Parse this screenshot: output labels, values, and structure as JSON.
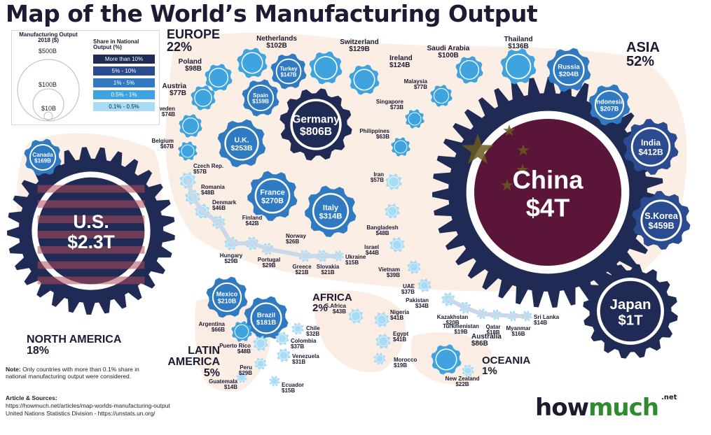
{
  "title": "Map of the World’s Manufacturing Output",
  "legend": {
    "size_title": "Manufacturing Output 2018 ($)",
    "scale": [
      "$500B",
      "$100B",
      "$10B"
    ],
    "share_title": "Share in National Output (%)",
    "categories": [
      "More than 10%",
      "5% - 10%",
      "1% - 5%",
      "0.5% - 1%",
      "0.1% - 0.5%"
    ]
  },
  "colors": {
    "navy": "#1f2a55",
    "dark_blue": "#2a4b8f",
    "blue": "#2f7ac0",
    "light_blue": "#3ea3df",
    "pale_blue": "#a8dcf5",
    "china": "#5a1538",
    "brand_green": "#2e8b2e"
  },
  "regions": [
    {
      "name": "EUROPE",
      "pct": "22%"
    },
    {
      "name": "ASIA",
      "pct": "52%"
    },
    {
      "name": "NORTH AMERICA",
      "pct": "18%"
    },
    {
      "name": "LATIN AMERICA",
      "pct": "5%"
    },
    {
      "name": "AFRICA",
      "pct": "2%"
    },
    {
      "name": "OCEANIA",
      "pct": "1%"
    }
  ],
  "countries": [
    {
      "name": "China",
      "value": "$4T",
      "category": "More than 10%"
    },
    {
      "name": "U.S.",
      "value": "$2.3T",
      "category": "More than 10%"
    },
    {
      "name": "Japan",
      "value": "$1T",
      "category": "More than 10%"
    },
    {
      "name": "Germany",
      "value": "$806B",
      "category": "More than 10%"
    },
    {
      "name": "S.Korea",
      "value": "$459B",
      "category": "5% - 10%"
    },
    {
      "name": "India",
      "value": "$412B",
      "category": "5% - 10%"
    },
    {
      "name": "Italy",
      "value": "$314B",
      "category": "1% - 5%"
    },
    {
      "name": "France",
      "value": "$270B",
      "category": "1% - 5%"
    },
    {
      "name": "U.K.",
      "value": "$253B",
      "category": "1% - 5%"
    },
    {
      "name": "Brazil",
      "value": "$181B",
      "category": "1% - 5%"
    },
    {
      "name": "Mexico",
      "value": "$210B",
      "category": "1% - 5%"
    },
    {
      "name": "Indonesia",
      "value": "$207B",
      "category": "1% - 5%"
    },
    {
      "name": "Russia",
      "value": "$204B",
      "category": "1% - 5%"
    },
    {
      "name": "Canada",
      "value": "$169B",
      "category": "1% - 5%"
    },
    {
      "name": "Spain",
      "value": "$159B",
      "category": "1% - 5%"
    },
    {
      "name": "Turkey",
      "value": "$147B",
      "category": "1% - 5%"
    },
    {
      "name": "Thailand",
      "value": "$136B",
      "category": "0.5% - 1%"
    },
    {
      "name": "Switzerland",
      "value": "$129B",
      "category": "0.5% - 1%"
    },
    {
      "name": "Ireland",
      "value": "$124B",
      "category": "0.5% - 1%"
    },
    {
      "name": "Netherlands",
      "value": "$102B",
      "category": "0.5% - 1%"
    },
    {
      "name": "Saudi Arabia",
      "value": "$100B",
      "category": "0.5% - 1%"
    },
    {
      "name": "Poland",
      "value": "$98B",
      "category": "0.5% - 1%"
    },
    {
      "name": "Australia",
      "value": "$86B",
      "category": "0.5% - 1%"
    },
    {
      "name": "Austria",
      "value": "$77B",
      "category": "0.5% - 1%"
    },
    {
      "name": "Malaysia",
      "value": "$77B",
      "category": "0.5% - 1%"
    },
    {
      "name": "Sweden",
      "value": "$74B",
      "category": "0.5% - 1%"
    },
    {
      "name": "Singapore",
      "value": "$73B",
      "category": "0.5% - 1%"
    },
    {
      "name": "Belgium",
      "value": "$67B",
      "category": "0.5% - 1%"
    },
    {
      "name": "Argentina",
      "value": "$66B",
      "category": "0.5% - 1%"
    },
    {
      "name": "Philippines",
      "value": "$63B",
      "category": "0.5% - 1%"
    },
    {
      "name": "Czech Rep.",
      "value": "$57B",
      "category": "0.1% - 0.5%"
    },
    {
      "name": "Iran",
      "value": "$57B",
      "category": "0.1% - 0.5%"
    },
    {
      "name": "Romania",
      "value": "$48B",
      "category": "0.1% - 0.5%"
    },
    {
      "name": "Denmark",
      "value": "$46B",
      "category": "0.1% - 0.5%"
    },
    {
      "name": "Bangladesh",
      "value": "$48B",
      "category": "0.1% - 0.5%"
    },
    {
      "name": "Puerto Rico",
      "value": "$48B",
      "category": "0.1% - 0.5%"
    },
    {
      "name": "Israel",
      "value": "$44B",
      "category": "0.1% - 0.5%"
    },
    {
      "name": "S.Africa",
      "value": "$43B",
      "category": "0.1% - 0.5%"
    },
    {
      "name": "Finland",
      "value": "$42B",
      "category": "0.1% - 0.5%"
    },
    {
      "name": "Nigeria",
      "value": "$41B",
      "category": "0.1% - 0.5%"
    },
    {
      "name": "Egypt",
      "value": "$41B",
      "category": "0.1% - 0.5%"
    },
    {
      "name": "Vietnam",
      "value": "$39B",
      "category": "0.1% - 0.5%"
    },
    {
      "name": "UAE",
      "value": "$37B",
      "category": "0.1% - 0.5%"
    },
    {
      "name": "Colombia",
      "value": "$37B",
      "category": "0.1% - 0.5%"
    },
    {
      "name": "Pakistan",
      "value": "$34B",
      "category": "0.1% - 0.5%"
    },
    {
      "name": "Chile",
      "value": "$32B",
      "category": "0.1% - 0.5%"
    },
    {
      "name": "Venezuela",
      "value": "$31B",
      "category": "0.1% - 0.5%"
    },
    {
      "name": "Hungary",
      "value": "$29B",
      "category": "0.1% - 0.5%"
    },
    {
      "name": "Portugal",
      "value": "$29B",
      "category": "0.1% - 0.5%"
    },
    {
      "name": "Peru",
      "value": "$29B",
      "category": "0.1% - 0.5%"
    },
    {
      "name": "Norway",
      "value": "$26B",
      "category": "0.1% - 0.5%"
    },
    {
      "name": "New Zealand",
      "value": "$22B",
      "category": "0.1% - 0.5%"
    },
    {
      "name": "Greece",
      "value": "$21B",
      "category": "0.1% - 0.5%"
    },
    {
      "name": "Slovakia",
      "value": "$21B",
      "category": "0.1% - 0.5%"
    },
    {
      "name": "Kazakhstan",
      "value": "$20B",
      "category": "0.1% - 0.5%"
    },
    {
      "name": "Turkmenistan",
      "value": "$19B",
      "category": "0.1% - 0.5%"
    },
    {
      "name": "Morocco",
      "value": "$19B",
      "category": "0.1% - 0.5%"
    },
    {
      "name": "Qatar",
      "value": "$18B",
      "category": "0.1% - 0.5%"
    },
    {
      "name": "Guatemala",
      "value": "$14B",
      "category": "0.1% - 0.5%"
    },
    {
      "name": "Myanmar",
      "value": "$16B",
      "category": "0.1% - 0.5%"
    },
    {
      "name": "Ukraine",
      "value": "$15B",
      "category": "0.1% - 0.5%"
    },
    {
      "name": "Ecuador",
      "value": "$15B",
      "category": "0.1% - 0.5%"
    },
    {
      "name": "Sri Lanka",
      "value": "$14B",
      "category": "0.1% - 0.5%"
    }
  ],
  "note_label": "Note:",
  "note_text": "Only countries with more than 0.1% share in national manufacturing output were considered.",
  "sources_label": "Article & Sources:",
  "sources": [
    "https://howmuch.net/articles/map-worlds-manufacturing-output",
    "United Nations Statistics Division - https://unstats.un.org/"
  ],
  "logo": {
    "how": "how",
    "much": "much",
    "net": ".net"
  }
}
